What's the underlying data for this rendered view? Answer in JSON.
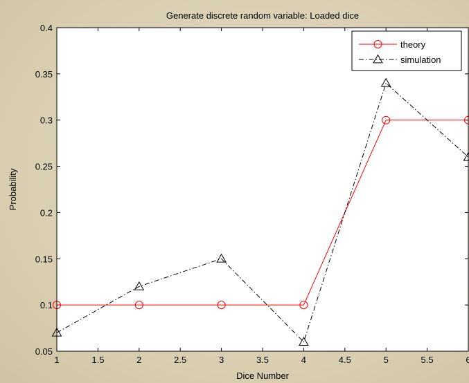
{
  "chart_data": {
    "type": "line",
    "title": "Generate discrete random variable: Loaded dice",
    "xlabel": "Dice Number",
    "ylabel": "Probability",
    "xlim": [
      1,
      6
    ],
    "ylim": [
      0.05,
      0.4
    ],
    "xticks": [
      1,
      1.5,
      2,
      2.5,
      3,
      3.5,
      4,
      4.5,
      5,
      5.5,
      6
    ],
    "xtick_labels": [
      "1",
      "1.5",
      "2",
      "2.5",
      "3",
      "3.5",
      "4",
      "4.5",
      "5",
      "5.5",
      "6"
    ],
    "yticks": [
      0.05,
      0.1,
      0.15,
      0.2,
      0.25,
      0.3,
      0.35,
      0.4
    ],
    "ytick_labels": [
      "0.05",
      "0.1",
      "0.15",
      "0.2",
      "0.25",
      "0.3",
      "0.35",
      "0.4"
    ],
    "grid": false,
    "legend_position": "top-right",
    "x": [
      1,
      2,
      3,
      4,
      5,
      6
    ],
    "series": [
      {
        "name": "theory",
        "values": [
          0.1,
          0.1,
          0.1,
          0.1,
          0.3,
          0.3
        ],
        "color": "#FF0000",
        "marker": "circle",
        "line_style": "solid"
      },
      {
        "name": "simulation",
        "values": [
          0.07,
          0.12,
          0.15,
          0.06,
          0.34,
          0.26
        ],
        "color": "#000000",
        "marker": "triangle",
        "line_style": "dash-dot"
      }
    ]
  }
}
